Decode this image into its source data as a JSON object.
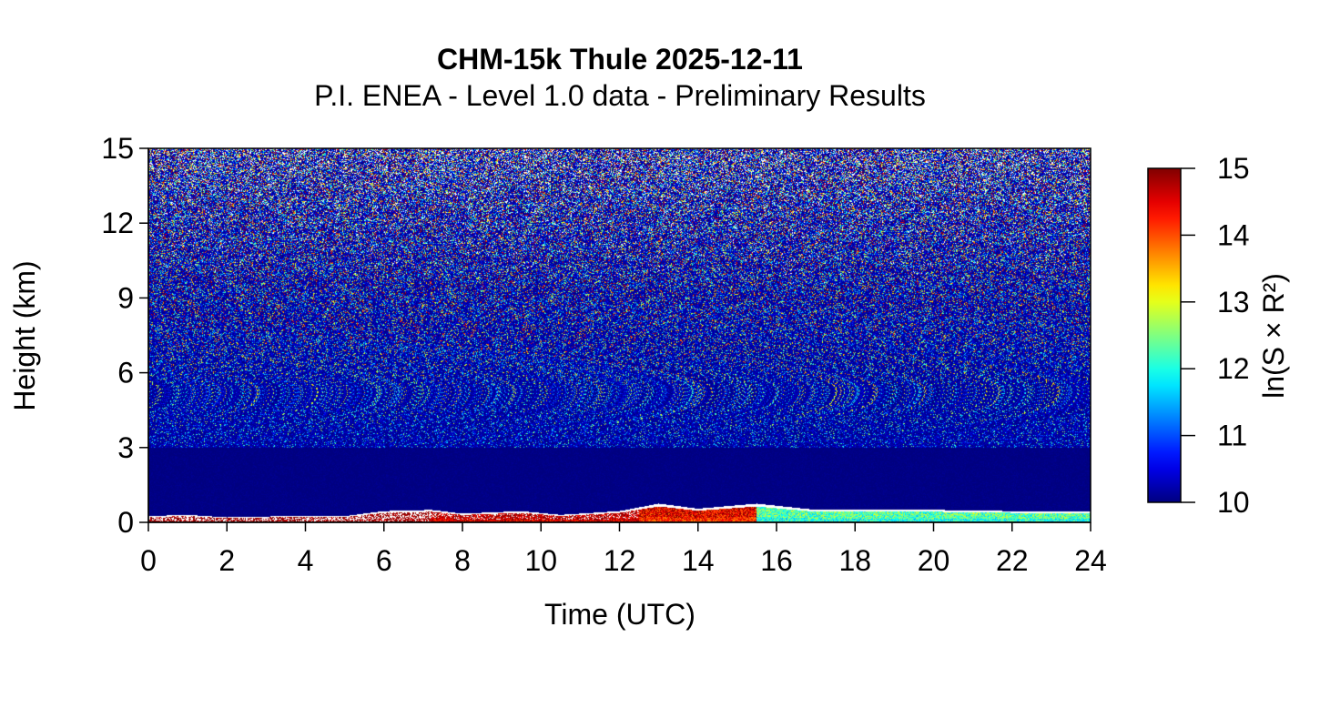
{
  "chart_data": {
    "type": "heatmap",
    "title": "CHM-15k Thule 2025-12-11",
    "subtitle": "P.I. ENEA - Level 1.0 data - Preliminary Results",
    "xlabel": "Time (UTC)",
    "ylabel": "Height (km)",
    "xlim": [
      0,
      24
    ],
    "ylim": [
      0,
      15
    ],
    "x_ticks": [
      0,
      2,
      4,
      6,
      8,
      10,
      12,
      14,
      16,
      18,
      20,
      22,
      24
    ],
    "y_ticks": [
      0,
      3,
      6,
      9,
      12,
      15
    ],
    "x_tick_labels": [
      "0",
      "2",
      "4",
      "6",
      "8",
      "10",
      "12",
      "14",
      "16",
      "18",
      "20",
      "22",
      "24"
    ],
    "y_tick_labels": [
      "0",
      "3",
      "6",
      "9",
      "12",
      "15"
    ],
    "colorbar": {
      "label": "ln(S × R²)",
      "min": 10,
      "max": 15,
      "ticks": [
        10,
        11,
        12,
        13,
        14,
        15
      ],
      "tick_labels": [
        "10",
        "11",
        "12",
        "13",
        "14",
        "15"
      ],
      "colormap": "jet",
      "colors": [
        "#00008f",
        "#0000ff",
        "#00ffff",
        "#ffff00",
        "#ff0000",
        "#800000"
      ]
    },
    "boundary_layer_top_km": [
      {
        "t": 0.0,
        "h": 0.25
      },
      {
        "t": 1.0,
        "h": 0.3
      },
      {
        "t": 2.0,
        "h": 0.2
      },
      {
        "t": 3.5,
        "h": 0.25
      },
      {
        "t": 5.0,
        "h": 0.25
      },
      {
        "t": 6.0,
        "h": 0.45
      },
      {
        "t": 7.2,
        "h": 0.5
      },
      {
        "t": 8.0,
        "h": 0.35
      },
      {
        "t": 9.5,
        "h": 0.45
      },
      {
        "t": 10.5,
        "h": 0.3
      },
      {
        "t": 12.0,
        "h": 0.45
      },
      {
        "t": 13.0,
        "h": 0.75
      },
      {
        "t": 14.0,
        "h": 0.55
      },
      {
        "t": 15.5,
        "h": 0.75
      },
      {
        "t": 17.0,
        "h": 0.5
      },
      {
        "t": 20.0,
        "h": 0.5
      },
      {
        "t": 22.0,
        "h": 0.45
      },
      {
        "t": 24.0,
        "h": 0.45
      }
    ],
    "near_surface_value": [
      {
        "t_start": 0,
        "t_end": 7.2,
        "value": 15
      },
      {
        "t_start": 7.2,
        "t_end": 12.5,
        "value": 14.6
      },
      {
        "t_start": 12.5,
        "t_end": 15.5,
        "value": 14.2
      },
      {
        "t_start": 15.5,
        "t_end": 24,
        "value": 12.0
      }
    ]
  }
}
